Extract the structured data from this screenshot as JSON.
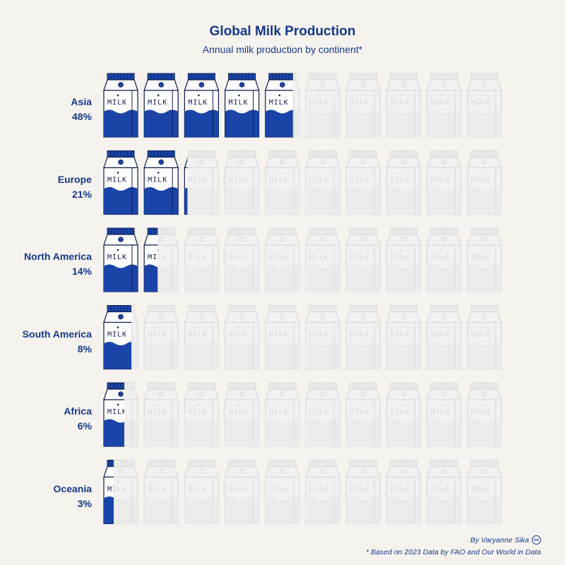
{
  "chart_data": {
    "type": "pictogram",
    "title": "Global Milk Production",
    "subtitle": "Annual milk production by continent*",
    "icon": "milk-carton-icon",
    "icon_label": "MILK",
    "icons_per_row": 10,
    "categories": [
      "Asia",
      "Europe",
      "North America",
      "South America",
      "Africa",
      "Oceania"
    ],
    "value_labels": [
      "48%",
      "21%",
      "14%",
      "8%",
      "6%",
      "3%"
    ],
    "values": [
      48,
      21,
      14,
      8,
      6,
      3
    ],
    "colors": {
      "filled": "#1a44a8",
      "outline": "#0e1f4f",
      "ghost_fill": "#ebebeb",
      "ghost_outline": "#dadada",
      "background": "#f6f3ef",
      "text": "#14398a"
    }
  },
  "footer": {
    "credit": "By Varyanne Sika",
    "license_icon": "creative-commons-icon",
    "license_text": "cc",
    "note": "* Based on 2023 Data by FAO and Our World in Data"
  }
}
